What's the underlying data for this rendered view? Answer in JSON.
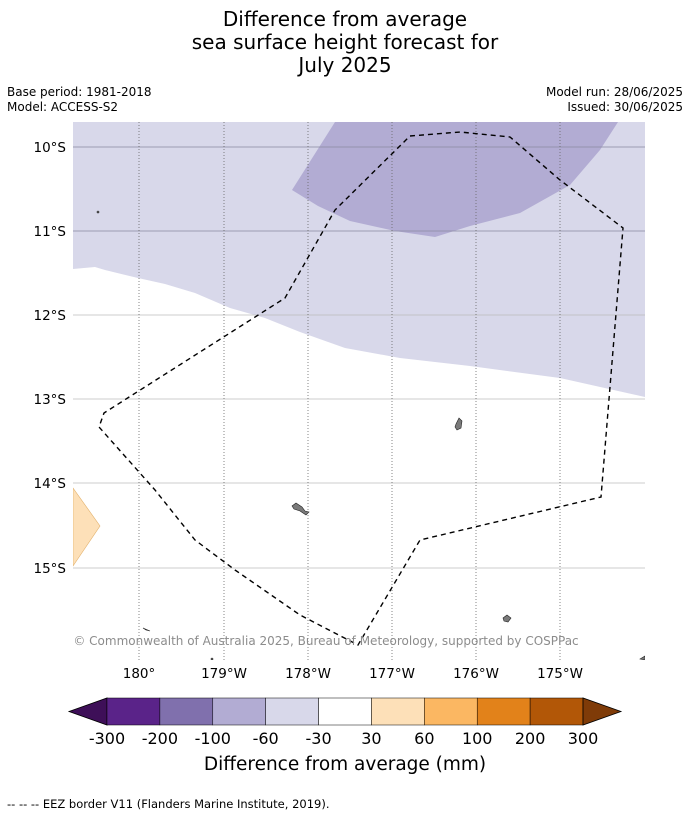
{
  "title_lines": [
    "Difference from average",
    "sea surface height forecast for",
    "July 2025"
  ],
  "meta_left": [
    "Base period: 1981-2018",
    "Model: ACCESS-S2"
  ],
  "meta_right": [
    "Model run: 28/06/2025",
    "Issued: 30/06/2025"
  ],
  "map": {
    "lat_labels": [
      "10°S",
      "11°S",
      "12°S",
      "13°S",
      "14°S",
      "15°S"
    ],
    "lon_labels": [
      "180°",
      "179°W",
      "178°W",
      "177°W",
      "176°W",
      "175°W"
    ],
    "copyright": "© Commonwealth of Australia 2025, Bureau of Meteorology, supported by COSPPac",
    "boundary_style": "dashed",
    "fill_regions": [
      {
        "name": "-60 to -30 mm",
        "color": "#d8d8ea"
      },
      {
        "name": "-100 to -60 mm",
        "color": "#b2acd3"
      },
      {
        "name": "30 to 60 mm",
        "color": "#fde0b8"
      }
    ],
    "land_color": "#7a7a7a"
  },
  "colorbar": {
    "colors": [
      "#3e0f58",
      "#5a2389",
      "#8070ad",
      "#b2acd3",
      "#d8d8ea",
      "#ffffff",
      "#fde0b8",
      "#fbb762",
      "#e2821a",
      "#b25707",
      "#7f3b08"
    ],
    "tick_labels": [
      "-300",
      "-200",
      "-100",
      "-60",
      "-30",
      "30",
      "60",
      "100",
      "200",
      "300"
    ],
    "label": "Difference from average (mm)"
  },
  "footer": "--  --  -- EEZ border V11 (Flanders Marine Institute, 2019)."
}
